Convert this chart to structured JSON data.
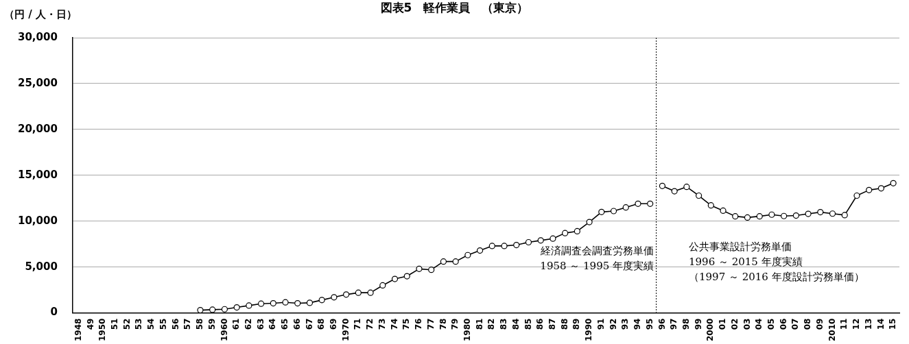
{
  "chart_data": {
    "type": "line",
    "title": "図表5　軽作業員　（東京）",
    "ylabel": "（円 / 人・日）",
    "categories": [
      "1948",
      "49",
      "1950",
      "51",
      "52",
      "53",
      "54",
      "55",
      "56",
      "57",
      "58",
      "59",
      "1960",
      "61",
      "62",
      "63",
      "64",
      "65",
      "66",
      "67",
      "68",
      "69",
      "1970",
      "71",
      "72",
      "73",
      "74",
      "75",
      "76",
      "77",
      "78",
      "79",
      "1980",
      "81",
      "82",
      "83",
      "84",
      "85",
      "86",
      "87",
      "88",
      "89",
      "1990",
      "91",
      "92",
      "93",
      "94",
      "95",
      "96",
      "97",
      "98",
      "99",
      "2000",
      "01",
      "02",
      "03",
      "04",
      "05",
      "06",
      "07",
      "08",
      "09",
      "2010",
      "11",
      "12",
      "13",
      "14",
      "15"
    ],
    "series": [
      {
        "color": "#000000",
        "values": [
          null,
          null,
          null,
          null,
          null,
          null,
          null,
          null,
          null,
          null,
          300,
          350,
          400,
          600,
          800,
          1000,
          1050,
          1150,
          1050,
          1100,
          1400,
          1700,
          2000,
          2200,
          2200,
          3000,
          3700,
          4000,
          4800,
          4700,
          5600,
          5600,
          6300,
          6800,
          7300,
          7300,
          7400,
          7700,
          7900,
          8100,
          8700,
          8900,
          9900,
          11000,
          11100,
          11500,
          11900,
          11900,
          null,
          null,
          null,
          null,
          null,
          null,
          null,
          null,
          null,
          null,
          null,
          null,
          null,
          null,
          null,
          null,
          null,
          null,
          null,
          null
        ]
      },
      {
        "color": "#000000",
        "values": [
          null,
          null,
          null,
          null,
          null,
          null,
          null,
          null,
          null,
          null,
          null,
          null,
          null,
          null,
          null,
          null,
          null,
          null,
          null,
          null,
          null,
          null,
          null,
          null,
          null,
          null,
          null,
          null,
          null,
          null,
          null,
          null,
          null,
          null,
          null,
          null,
          null,
          null,
          null,
          null,
          null,
          null,
          null,
          null,
          null,
          null,
          null,
          null,
          13840,
          13260,
          13740,
          12780,
          11720,
          11140,
          10530,
          10400,
          10530,
          10710,
          10560,
          10610,
          10800,
          10980,
          10820,
          10660,
          12780,
          13390,
          13580,
          14140
        ]
      }
    ],
    "ylim": [
      0,
      30000
    ],
    "yticks": [
      0,
      {
        "value": 5000,
        "label": "5,000"
      },
      {
        "value": 10000,
        "label": "10,000"
      },
      {
        "value": 15000,
        "label": "15,000"
      },
      {
        "value": 20000,
        "label": "20,000"
      },
      {
        "value": 25000,
        "label": "25,000"
      },
      {
        "value": 30000,
        "label": "30,000"
      }
    ],
    "grid": "y",
    "legend": false,
    "marker": "circle",
    "line_style": "solid",
    "ref_lines": [
      {
        "axis": "x",
        "value": "96",
        "line_style": "dotted",
        "color": "#000000"
      }
    ],
    "annotations": [
      "経済調査会調査労務単価",
      "1958 ～ 1995 年度実績",
      "公共事業設計労務単価",
      "1996 ～ 2015 年度実績",
      "（1997 ～ 2016 年度設計労務単価）"
    ]
  }
}
